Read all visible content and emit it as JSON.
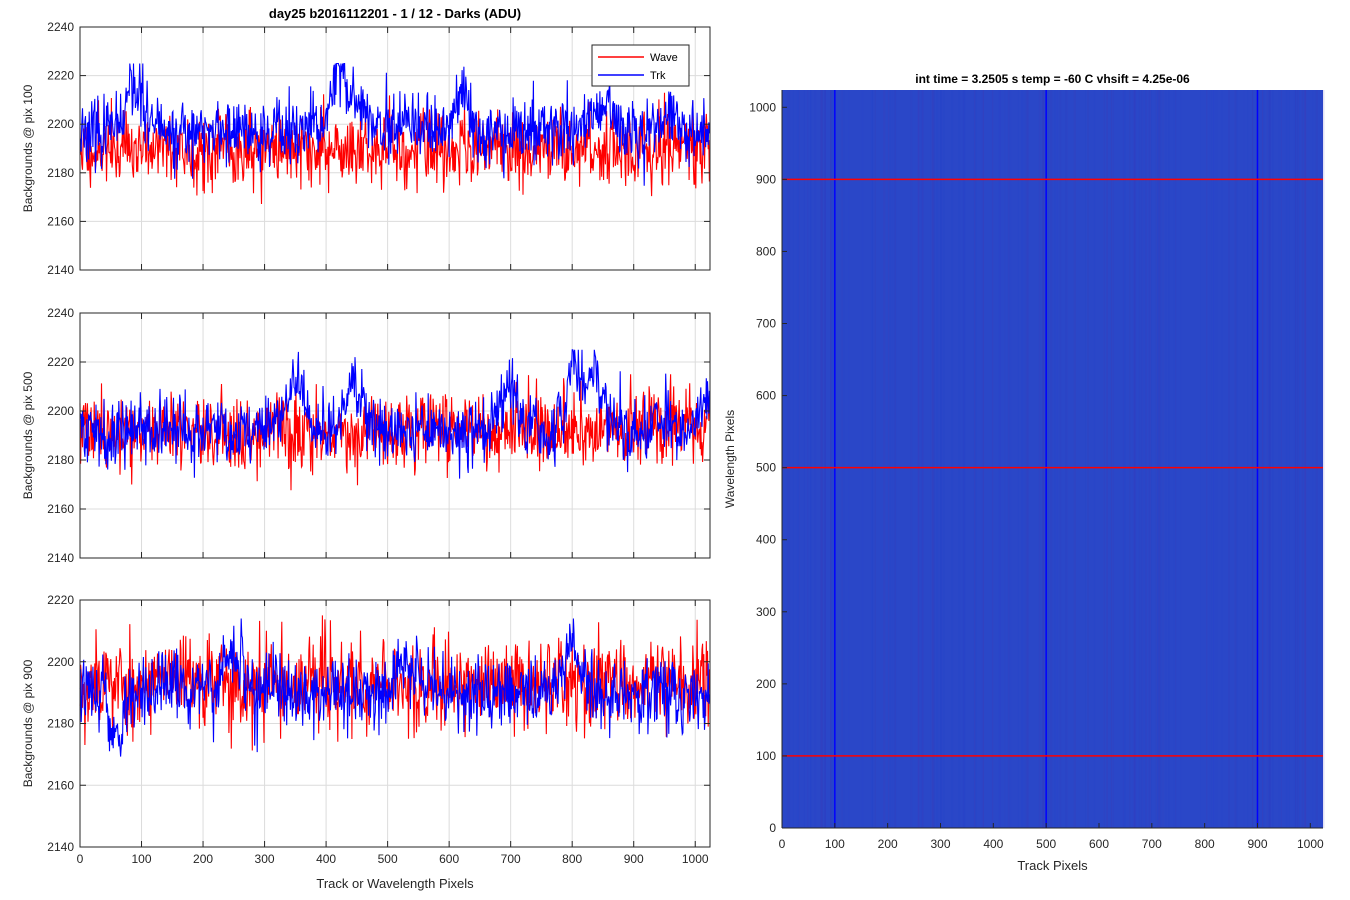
{
  "figure": {
    "suptitle": "day25 b2016112201 - 1 / 12 - Darks (ADU)",
    "shared_xlabel": "Track or Wavelength Pixels"
  },
  "chart_data": [
    {
      "type": "line",
      "ylabel": "Backgrounds @ pix 100",
      "xlabel": "",
      "xlim": [
        0,
        1024
      ],
      "ylim": [
        2140,
        2240
      ],
      "xticks": [
        0,
        100,
        200,
        300,
        400,
        500,
        600,
        700,
        800,
        900,
        1000
      ],
      "yticks": [
        2140,
        2160,
        2180,
        2200,
        2220,
        2240
      ],
      "grid": true,
      "legend": {
        "placement": "top-right",
        "entries": [
          "Wave",
          "Trk"
        ]
      },
      "series": [
        {
          "name": "Wave",
          "color": "#ff0000",
          "mean": 2190,
          "std": 8,
          "seed": 11,
          "min": 2152,
          "max": 2223
        },
        {
          "name": "Trk",
          "color": "#0000ff",
          "mean": 2197,
          "std": 7,
          "seed": 23,
          "min": 2170,
          "max": 2225,
          "bumps": [
            [
              90,
              2215
            ],
            [
              420,
              2219
            ],
            [
              450,
              2210
            ],
            [
              620,
              2210
            ],
            [
              850,
              2210
            ],
            [
              960,
              2205
            ]
          ]
        }
      ]
    },
    {
      "type": "line",
      "ylabel": "Backgrounds @ pix 500",
      "xlabel": "",
      "xlim": [
        0,
        1024
      ],
      "ylim": [
        2140,
        2240
      ],
      "xticks": [
        0,
        100,
        200,
        300,
        400,
        500,
        600,
        700,
        800,
        900,
        1000
      ],
      "yticks": [
        2140,
        2160,
        2180,
        2200,
        2220,
        2240
      ],
      "grid": true,
      "series": [
        {
          "name": "Wave",
          "color": "#ff0000",
          "mean": 2192,
          "std": 8,
          "seed": 37,
          "min": 2158,
          "max": 2215
        },
        {
          "name": "Trk",
          "color": "#0000ff",
          "mean": 2192,
          "std": 7,
          "seed": 41,
          "min": 2163,
          "max": 2225,
          "bumps": [
            [
              350,
              2215
            ],
            [
              445,
              2210
            ],
            [
              695,
              2212
            ],
            [
              805,
              2220
            ],
            [
              840,
              2212
            ],
            [
              1015,
              2205
            ]
          ]
        }
      ]
    },
    {
      "type": "line",
      "ylabel": "Backgrounds @ pix 900",
      "xlabel": "Track or Wavelength Pixels",
      "xlim": [
        0,
        1024
      ],
      "ylim": [
        2140,
        2220
      ],
      "xticks": [
        0,
        100,
        200,
        300,
        400,
        500,
        600,
        700,
        800,
        900,
        1000
      ],
      "yticks": [
        2140,
        2160,
        2180,
        2200,
        2220
      ],
      "grid": true,
      "series": [
        {
          "name": "Wave",
          "color": "#ff0000",
          "mean": 2193,
          "std": 8,
          "seed": 53,
          "min": 2148,
          "max": 2215
        },
        {
          "name": "Trk",
          "color": "#0000ff",
          "mean": 2190,
          "std": 6,
          "seed": 67,
          "min": 2167,
          "max": 2214,
          "bumps": [
            [
              60,
              2175
            ],
            [
              250,
              2205
            ],
            [
              530,
              2202
            ],
            [
              800,
              2205
            ],
            [
              1015,
              2190
            ]
          ]
        }
      ]
    },
    {
      "type": "heatmap",
      "title": "int time = 3.2505 s    temp = -60 C    vhsift = 4.25e-06",
      "xlabel": "Track Pixels",
      "ylabel": "Wavelength Pixels",
      "xlim": [
        0,
        1024
      ],
      "ylim": [
        0,
        1024
      ],
      "xticks": [
        0,
        100,
        200,
        300,
        400,
        500,
        600,
        700,
        800,
        900,
        1000
      ],
      "yticks": [
        0,
        100,
        200,
        300,
        400,
        500,
        600,
        700,
        800,
        900,
        1000
      ],
      "base_color": "#2a47c8",
      "vertical_lines": {
        "color": "#0000ff",
        "x": [
          100,
          500,
          900
        ]
      },
      "horizontal_lines": {
        "color": "#ff0000",
        "y": [
          100,
          500,
          900
        ]
      }
    }
  ]
}
